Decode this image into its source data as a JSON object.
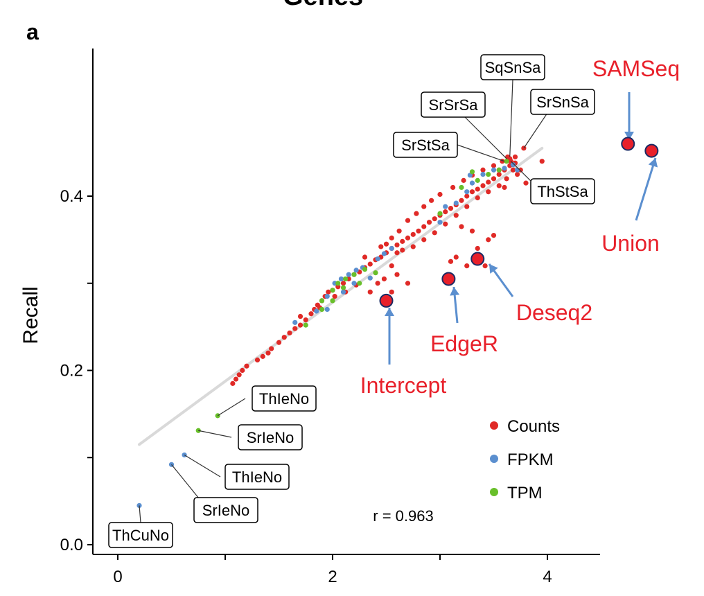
{
  "panel_letter": "a",
  "top_title": "Genes",
  "chart_data": {
    "type": "scatter",
    "xlabel": "",
    "ylabel": "Recall",
    "xlim": [
      -0.3,
      4.6
    ],
    "ylim": [
      -0.01,
      0.57
    ],
    "xticks": [
      "0",
      "2",
      "4"
    ],
    "xtick_values": [
      0,
      2,
      4
    ],
    "yticks": [
      "0.0",
      "0.2",
      "0.4"
    ],
    "ytick_values": [
      0.0,
      0.2,
      0.4
    ],
    "grid": false,
    "legend_position": "bottom-right",
    "annotation": "r = 0.963",
    "trend_line": {
      "x": [
        0.2,
        3.95
      ],
      "y": [
        0.115,
        0.455
      ],
      "color": "#d9d9d9"
    },
    "series": [
      {
        "name": "Counts",
        "color": "#e02a27",
        "points": [
          [
            1.07,
            0.185
          ],
          [
            1.1,
            0.19
          ],
          [
            1.13,
            0.195
          ],
          [
            1.16,
            0.2
          ],
          [
            1.2,
            0.205
          ],
          [
            1.3,
            0.212
          ],
          [
            1.35,
            0.216
          ],
          [
            1.4,
            0.22
          ],
          [
            1.43,
            0.225
          ],
          [
            1.5,
            0.232
          ],
          [
            1.55,
            0.238
          ],
          [
            1.6,
            0.243
          ],
          [
            1.65,
            0.248
          ],
          [
            1.7,
            0.252
          ],
          [
            1.75,
            0.258
          ],
          [
            1.8,
            0.265
          ],
          [
            1.83,
            0.27
          ],
          [
            1.86,
            0.275
          ],
          [
            1.9,
            0.28
          ],
          [
            1.93,
            0.285
          ],
          [
            1.96,
            0.29
          ],
          [
            2.0,
            0.292
          ],
          [
            2.05,
            0.296
          ],
          [
            2.1,
            0.3
          ],
          [
            2.15,
            0.305
          ],
          [
            2.2,
            0.31
          ],
          [
            2.25,
            0.313
          ],
          [
            2.3,
            0.318
          ],
          [
            2.35,
            0.322
          ],
          [
            2.4,
            0.327
          ],
          [
            2.45,
            0.33
          ],
          [
            2.5,
            0.335
          ],
          [
            2.55,
            0.34
          ],
          [
            2.6,
            0.344
          ],
          [
            2.65,
            0.348
          ],
          [
            2.7,
            0.352
          ],
          [
            2.75,
            0.356
          ],
          [
            2.8,
            0.36
          ],
          [
            2.85,
            0.365
          ],
          [
            2.9,
            0.37
          ],
          [
            2.95,
            0.374
          ],
          [
            3.0,
            0.378
          ],
          [
            3.05,
            0.382
          ],
          [
            3.1,
            0.386
          ],
          [
            3.15,
            0.39
          ],
          [
            3.2,
            0.395
          ],
          [
            3.25,
            0.4
          ],
          [
            3.3,
            0.405
          ],
          [
            3.35,
            0.408
          ],
          [
            3.4,
            0.412
          ],
          [
            3.45,
            0.416
          ],
          [
            3.5,
            0.42
          ],
          [
            3.55,
            0.425
          ],
          [
            3.6,
            0.43
          ],
          [
            3.65,
            0.435
          ],
          [
            3.7,
            0.438
          ],
          [
            2.3,
            0.33
          ],
          [
            2.45,
            0.342
          ],
          [
            2.55,
            0.352
          ],
          [
            2.62,
            0.36
          ],
          [
            2.7,
            0.372
          ],
          [
            2.78,
            0.38
          ],
          [
            2.85,
            0.388
          ],
          [
            2.92,
            0.395
          ],
          [
            3.0,
            0.402
          ],
          [
            3.12,
            0.41
          ],
          [
            3.22,
            0.418
          ],
          [
            3.3,
            0.424
          ],
          [
            3.4,
            0.43
          ],
          [
            3.5,
            0.435
          ],
          [
            3.58,
            0.44
          ],
          [
            3.65,
            0.443
          ],
          [
            2.6,
            0.335
          ],
          [
            2.55,
            0.32
          ],
          [
            2.48,
            0.305
          ],
          [
            2.42,
            0.3
          ],
          [
            2.35,
            0.29
          ],
          [
            2.6,
            0.31
          ],
          [
            2.7,
            0.3
          ],
          [
            2.55,
            0.29
          ],
          [
            3.1,
            0.325
          ],
          [
            3.25,
            0.32
          ],
          [
            3.35,
            0.34
          ],
          [
            3.45,
            0.35
          ],
          [
            3.5,
            0.355
          ],
          [
            3.42,
            0.32
          ],
          [
            3.15,
            0.33
          ],
          [
            3.3,
            0.36
          ],
          [
            3.2,
            0.365
          ],
          [
            3.75,
            0.43
          ],
          [
            3.8,
            0.415
          ],
          [
            3.72,
            0.425
          ],
          [
            3.78,
            0.455
          ],
          [
            3.95,
            0.44
          ],
          [
            3.6,
            0.41
          ],
          [
            3.55,
            0.43
          ],
          [
            1.7,
            0.262
          ],
          [
            1.88,
            0.272
          ],
          [
            2.02,
            0.285
          ],
          [
            2.12,
            0.29
          ],
          [
            2.22,
            0.298
          ],
          [
            2.5,
            0.345
          ],
          [
            2.65,
            0.338
          ],
          [
            2.75,
            0.342
          ],
          [
            2.85,
            0.35
          ],
          [
            2.95,
            0.358
          ],
          [
            3.05,
            0.368
          ],
          [
            3.15,
            0.378
          ],
          [
            3.25,
            0.388
          ],
          [
            3.35,
            0.398
          ],
          [
            3.45,
            0.405
          ],
          [
            3.55,
            0.412
          ],
          [
            3.62,
            0.42
          ],
          [
            3.68,
            0.43
          ],
          [
            3.7,
            0.445
          ],
          [
            3.63,
            0.445
          ],
          [
            3.66,
            0.44
          ]
        ]
      },
      {
        "name": "FPKM",
        "color": "#5b8fcf",
        "points": [
          [
            0.2,
            0.045
          ],
          [
            0.5,
            0.092
          ],
          [
            0.62,
            0.103
          ],
          [
            1.65,
            0.255
          ],
          [
            1.85,
            0.268
          ],
          [
            1.95,
            0.285
          ],
          [
            2.02,
            0.3
          ],
          [
            2.08,
            0.305
          ],
          [
            2.15,
            0.31
          ],
          [
            2.22,
            0.315
          ],
          [
            2.28,
            0.318
          ],
          [
            2.35,
            0.306
          ],
          [
            2.42,
            0.328
          ],
          [
            2.48,
            0.334
          ],
          [
            2.55,
            0.34
          ],
          [
            3.0,
            0.37
          ],
          [
            3.05,
            0.388
          ],
          [
            3.15,
            0.392
          ],
          [
            3.25,
            0.405
          ],
          [
            3.3,
            0.415
          ],
          [
            3.4,
            0.425
          ],
          [
            3.5,
            0.43
          ],
          [
            3.6,
            0.432
          ],
          [
            3.68,
            0.436
          ],
          [
            3.72,
            0.43
          ],
          [
            3.28,
            0.424
          ],
          [
            2.2,
            0.3
          ],
          [
            2.1,
            0.29
          ],
          [
            1.95,
            0.27
          ]
        ]
      },
      {
        "name": "TPM",
        "color": "#68bf2a",
        "points": [
          [
            0.93,
            0.148
          ],
          [
            0.75,
            0.131
          ],
          [
            1.75,
            0.252
          ],
          [
            1.9,
            0.28
          ],
          [
            2.0,
            0.292
          ],
          [
            2.05,
            0.3
          ],
          [
            2.12,
            0.305
          ],
          [
            2.2,
            0.31
          ],
          [
            2.3,
            0.316
          ],
          [
            2.4,
            0.312
          ],
          [
            2.0,
            0.28
          ],
          [
            2.1,
            0.295
          ],
          [
            3.0,
            0.38
          ],
          [
            3.2,
            0.41
          ],
          [
            3.35,
            0.418
          ],
          [
            3.45,
            0.425
          ],
          [
            3.55,
            0.43
          ],
          [
            3.62,
            0.44
          ],
          [
            3.3,
            0.428
          ],
          [
            1.9,
            0.27
          ],
          [
            2.25,
            0.3
          ]
        ]
      }
    ],
    "highlighted_methods": [
      {
        "name": "SAMSeq",
        "x": 4.75,
        "y": 0.46
      },
      {
        "name": "Union",
        "x": 4.97,
        "y": 0.452
      },
      {
        "name": "Deseq2",
        "x": 3.35,
        "y": 0.328
      },
      {
        "name": "EdgeR",
        "x": 3.08,
        "y": 0.305
      },
      {
        "name": "Intercept",
        "x": 2.5,
        "y": 0.28
      }
    ],
    "labeled_points": [
      {
        "name": "SqSnSa",
        "x": 3.65,
        "y": 0.445
      },
      {
        "name": "SrSrSa",
        "x": 3.62,
        "y": 0.443
      },
      {
        "name": "SrSnSa",
        "x": 3.78,
        "y": 0.455
      },
      {
        "name": "SrStSa",
        "x": 3.6,
        "y": 0.44
      },
      {
        "name": "ThStSa",
        "x": 3.66,
        "y": 0.44
      },
      {
        "name": "ThIeNo",
        "x": 0.93,
        "y": 0.148
      },
      {
        "name": "SrIeNo",
        "x": 0.75,
        "y": 0.131
      },
      {
        "name": "ThIeNo",
        "x": 0.62,
        "y": 0.103
      },
      {
        "name": "SrIeNo",
        "x": 0.5,
        "y": 0.092
      },
      {
        "name": "ThCuNo",
        "x": 0.2,
        "y": 0.045
      }
    ]
  },
  "colors": {
    "highlight_text": "#e8202a",
    "arrow": "#5b8fcf",
    "highlight_fill": "#e8202a"
  }
}
